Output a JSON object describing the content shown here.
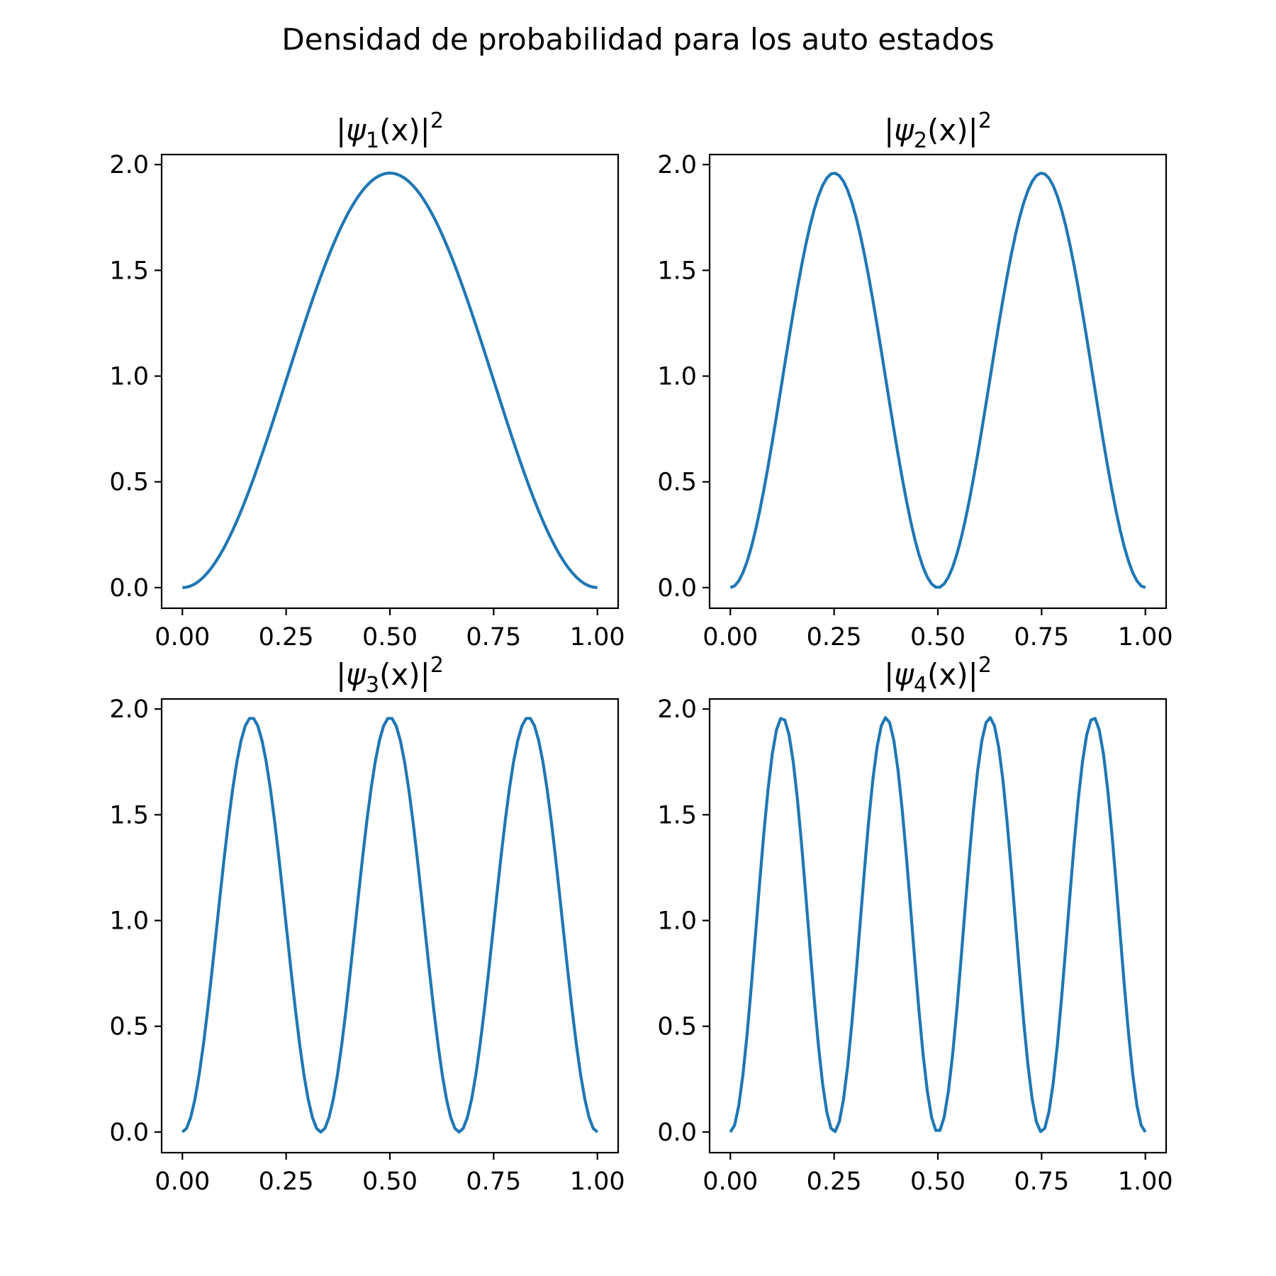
{
  "figure": {
    "title": "Densidad de probabilidad para los auto estados"
  },
  "colors": {
    "line": "#1f77b4",
    "axes": "#000000",
    "background": "#ffffff"
  },
  "chart_data": [
    {
      "type": "line",
      "title": "|ψ1(x)|2",
      "title_parts": {
        "left": "|ψ",
        "sub": "1",
        "mid": "(x)|",
        "sup": "2"
      },
      "xlabel": "",
      "ylabel": "",
      "xlim": [
        -0.05,
        1.05
      ],
      "ylim": [
        -0.0975,
        2.0475
      ],
      "xticks": [
        "0.00",
        "0.25",
        "0.50",
        "0.75",
        "1.00"
      ],
      "yticks": [
        "0.0",
        "0.5",
        "1.0",
        "1.5",
        "2.0"
      ],
      "grid": false,
      "series": [
        {
          "n": 1,
          "x_range": [
            0,
            1
          ],
          "num_points": 100,
          "y_max": 1.96,
          "y_min": 0.0
        }
      ]
    },
    {
      "type": "line",
      "title": "|ψ2(x)|2",
      "title_parts": {
        "left": "|ψ",
        "sub": "2",
        "mid": "(x)|",
        "sup": "2"
      },
      "xlabel": "",
      "ylabel": "",
      "xlim": [
        -0.05,
        1.05
      ],
      "ylim": [
        -0.0975,
        2.0475
      ],
      "xticks": [
        "0.00",
        "0.25",
        "0.50",
        "0.75",
        "1.00"
      ],
      "yticks": [
        "0.0",
        "0.5",
        "1.0",
        "1.5",
        "2.0"
      ],
      "grid": false,
      "series": [
        {
          "n": 2,
          "x_range": [
            0,
            1
          ],
          "num_points": 100,
          "y_max": 1.96,
          "y_min": 0.0
        }
      ]
    },
    {
      "type": "line",
      "title": "|ψ3(x)|2",
      "title_parts": {
        "left": "|ψ",
        "sub": "3",
        "mid": "(x)|",
        "sup": "2"
      },
      "xlabel": "",
      "ylabel": "",
      "xlim": [
        -0.05,
        1.05
      ],
      "ylim": [
        -0.0975,
        2.0475
      ],
      "xticks": [
        "0.00",
        "0.25",
        "0.50",
        "0.75",
        "1.00"
      ],
      "yticks": [
        "0.0",
        "0.5",
        "1.0",
        "1.5",
        "2.0"
      ],
      "grid": false,
      "series": [
        {
          "n": 3,
          "x_range": [
            0,
            1
          ],
          "num_points": 100,
          "y_max": 1.96,
          "y_min": 0.0
        }
      ]
    },
    {
      "type": "line",
      "title": "|ψ4(x)|2",
      "title_parts": {
        "left": "|ψ",
        "sub": "4",
        "mid": "(x)|",
        "sup": "2"
      },
      "xlabel": "",
      "ylabel": "",
      "xlim": [
        -0.05,
        1.05
      ],
      "ylim": [
        -0.0975,
        2.0475
      ],
      "xticks": [
        "0.00",
        "0.25",
        "0.50",
        "0.75",
        "1.00"
      ],
      "yticks": [
        "0.0",
        "0.5",
        "1.0",
        "1.5",
        "2.0"
      ],
      "grid": false,
      "series": [
        {
          "n": 4,
          "x_range": [
            0,
            1
          ],
          "num_points": 100,
          "y_max": 1.96,
          "y_min": 0.0
        }
      ]
    }
  ]
}
